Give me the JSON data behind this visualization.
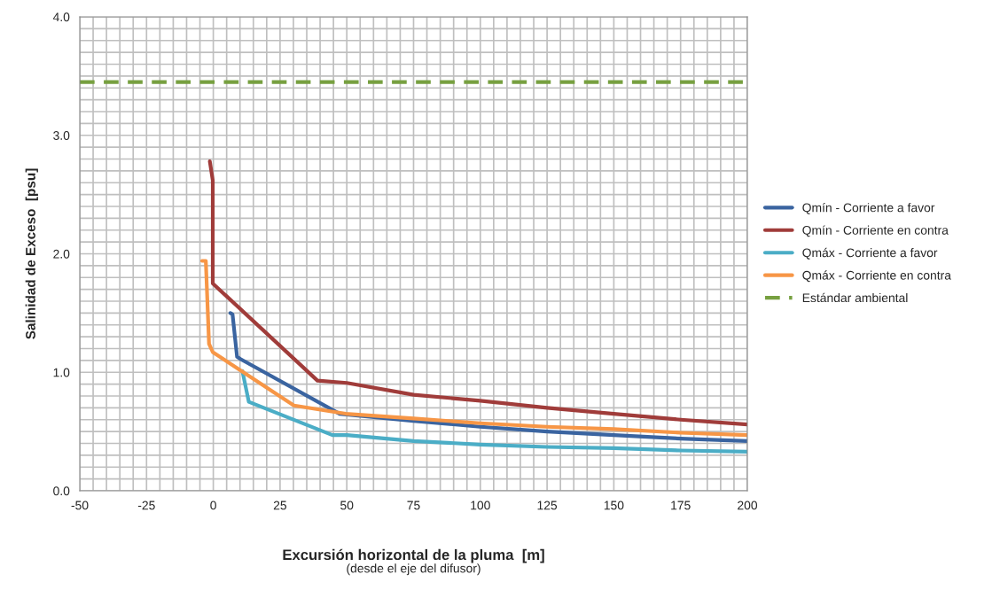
{
  "chart_data": {
    "type": "line",
    "xlabel": "Excursión horizontal de la pluma  [m]",
    "ylabel": "Salinidad de Exceso  [psu]",
    "annotations": [
      "(desde el eje del difusor)"
    ],
    "xlim": [
      -50,
      200
    ],
    "ylim": [
      0,
      4
    ],
    "xticks": [
      -50,
      {
        "value": -45,
        "label": null
      },
      {
        "value": -40,
        "label": null
      },
      {
        "value": -35,
        "label": null
      },
      {
        "value": -30,
        "label": null
      },
      -25,
      {
        "value": -20,
        "label": null
      },
      {
        "value": -15,
        "label": null
      },
      {
        "value": -10,
        "label": null
      },
      {
        "value": -5,
        "label": null
      },
      0,
      {
        "value": 5,
        "label": null
      },
      {
        "value": 10,
        "label": null
      },
      {
        "value": 15,
        "label": null
      },
      {
        "value": 20,
        "label": null
      },
      25,
      {
        "value": 30,
        "label": null
      },
      {
        "value": 35,
        "label": null
      },
      {
        "value": 40,
        "label": null
      },
      {
        "value": 45,
        "label": null
      },
      50,
      {
        "value": 55,
        "label": null
      },
      {
        "value": 60,
        "label": null
      },
      {
        "value": 65,
        "label": null
      },
      {
        "value": 70,
        "label": null
      },
      75,
      {
        "value": 80,
        "label": null
      },
      {
        "value": 85,
        "label": null
      },
      {
        "value": 90,
        "label": null
      },
      {
        "value": 95,
        "label": null
      },
      100,
      {
        "value": 105,
        "label": null
      },
      {
        "value": 110,
        "label": null
      },
      {
        "value": 115,
        "label": null
      },
      {
        "value": 120,
        "label": null
      },
      125,
      {
        "value": 130,
        "label": null
      },
      {
        "value": 135,
        "label": null
      },
      {
        "value": 140,
        "label": null
      },
      {
        "value": 145,
        "label": null
      },
      150,
      {
        "value": 155,
        "label": null
      },
      {
        "value": 160,
        "label": null
      },
      {
        "value": 165,
        "label": null
      },
      {
        "value": 170,
        "label": null
      },
      175,
      {
        "value": 180,
        "label": null
      },
      {
        "value": 185,
        "label": null
      },
      {
        "value": 190,
        "label": null
      },
      {
        "value": 195,
        "label": null
      },
      200
    ],
    "yticks": [
      {
        "value": 0,
        "label": "0.0"
      },
      {
        "value": 0.1,
        "label": null
      },
      {
        "value": 0.2,
        "label": null
      },
      {
        "value": 0.3,
        "label": null
      },
      {
        "value": 0.4,
        "label": null
      },
      {
        "value": 0.5,
        "label": null
      },
      {
        "value": 0.6,
        "label": null
      },
      {
        "value": 0.7,
        "label": null
      },
      {
        "value": 0.8,
        "label": null
      },
      {
        "value": 0.9,
        "label": null
      },
      {
        "value": 1,
        "label": "1.0"
      },
      {
        "value": 1.1,
        "label": null
      },
      {
        "value": 1.2,
        "label": null
      },
      {
        "value": 1.3,
        "label": null
      },
      {
        "value": 1.4,
        "label": null
      },
      {
        "value": 1.5,
        "label": null
      },
      {
        "value": 1.6,
        "label": null
      },
      {
        "value": 1.7,
        "label": null
      },
      {
        "value": 1.8,
        "label": null
      },
      {
        "value": 1.9,
        "label": null
      },
      {
        "value": 2,
        "label": "2.0"
      },
      {
        "value": 2.1,
        "label": null
      },
      {
        "value": 2.2,
        "label": null
      },
      {
        "value": 2.3,
        "label": null
      },
      {
        "value": 2.4,
        "label": null
      },
      {
        "value": 2.5,
        "label": null
      },
      {
        "value": 2.6,
        "label": null
      },
      {
        "value": 2.7,
        "label": null
      },
      {
        "value": 2.8,
        "label": null
      },
      {
        "value": 2.9,
        "label": null
      },
      {
        "value": 3,
        "label": "3.0"
      },
      {
        "value": 3.1,
        "label": null
      },
      {
        "value": 3.2,
        "label": null
      },
      {
        "value": 3.3,
        "label": null
      },
      {
        "value": 3.4,
        "label": null
      },
      {
        "value": 3.5,
        "label": null
      },
      {
        "value": 3.6,
        "label": null
      },
      {
        "value": 3.7,
        "label": null
      },
      {
        "value": 3.8,
        "label": null
      },
      {
        "value": 3.9,
        "label": null
      },
      {
        "value": 4,
        "label": "4.0"
      }
    ],
    "grid": true,
    "legend": "right",
    "line_style": "solid",
    "marker": "none",
    "series": [
      {
        "name": "Qmín - Corriente a favor",
        "color": "#3a64a0",
        "x": [
          6.4,
          7.2,
          8.9,
          10.3,
          47.3,
          75,
          100,
          125,
          150,
          175,
          200
        ],
        "values": [
          1.5,
          1.49,
          1.13,
          1.11,
          0.65,
          0.59,
          0.54,
          0.5,
          0.47,
          0.44,
          0.42
        ]
      },
      {
        "name": "Qmín - Corriente en contra",
        "color": "#a03c3a",
        "x": [
          -1.3,
          -0.2,
          -0.2,
          39,
          50,
          75,
          100,
          125,
          150,
          175,
          200
        ],
        "values": [
          2.78,
          2.62,
          1.75,
          0.93,
          0.91,
          0.81,
          0.76,
          0.7,
          0.65,
          0.6,
          0.56
        ]
      },
      {
        "name": "Qmáx - Corriente a favor",
        "color": "#4badc6",
        "x": [
          10.9,
          13.3,
          44.6,
          50,
          75,
          100,
          125,
          150,
          175,
          200
        ],
        "values": [
          1.01,
          0.75,
          0.47,
          0.47,
          0.42,
          0.39,
          0.37,
          0.36,
          0.34,
          0.33
        ]
      },
      {
        "name": "Qmáx - Corriente en contra",
        "color": "#f79646",
        "x": [
          -4.2,
          -2.8,
          -1.6,
          -0.2,
          30.2,
          49.6,
          75,
          100,
          125,
          150,
          175,
          200
        ],
        "values": [
          1.94,
          1.94,
          1.24,
          1.17,
          0.72,
          0.65,
          0.61,
          0.57,
          0.54,
          0.52,
          0.49,
          0.47
        ]
      }
    ],
    "ref_lines": [
      {
        "axis": "y",
        "value": 3.45,
        "label": "Estándar ambiental",
        "color": "#77a040",
        "line_style": "dashed"
      }
    ]
  }
}
